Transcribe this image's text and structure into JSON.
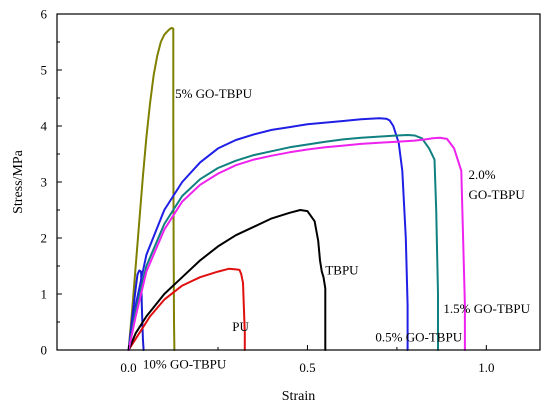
{
  "chart_data": {
    "type": "line",
    "xlabel": "Strain",
    "ylabel": "Stress/MPa",
    "xlim": [
      -0.2,
      1.15
    ],
    "ylim": [
      0,
      6
    ],
    "xticks": [
      0.0,
      0.5,
      1.0
    ],
    "xtick_labels": [
      "0.0",
      "0.5",
      "1.0"
    ],
    "yticks": [
      0,
      1,
      2,
      3,
      4,
      5,
      6
    ],
    "ytick_labels": [
      "0",
      "1",
      "2",
      "3",
      "4",
      "5",
      "6"
    ],
    "grid": false,
    "annotations": [
      {
        "text": "5% GO-TBPU",
        "x": 0.13,
        "y": 4.5
      },
      {
        "text": "2.0%",
        "x": 0.95,
        "y": 3.05
      },
      {
        "text": "GO-TBPU",
        "x": 0.95,
        "y": 2.7
      },
      {
        "text": "TBPU",
        "x": 0.55,
        "y": 1.35
      },
      {
        "text": "1.5% GO-TBPU",
        "x": 0.88,
        "y": 0.66
      },
      {
        "text": "PU",
        "x": 0.29,
        "y": 0.34
      },
      {
        "text": "0.5% GO-TBPU",
        "x": 0.69,
        "y": 0.15
      },
      {
        "text": "10% GO-TBPU",
        "x": 0.04,
        "y": -0.33
      }
    ],
    "series": [
      {
        "color": "#808000",
        "x": [
          0.0,
          0.01,
          0.02,
          0.03,
          0.04,
          0.05,
          0.06,
          0.07,
          0.08,
          0.09,
          0.1,
          0.11,
          0.115,
          0.12,
          0.125,
          0.125,
          0.126,
          0.127,
          0.128
        ],
        "y": [
          0.0,
          0.7,
          1.5,
          2.3,
          3.1,
          3.8,
          4.4,
          4.9,
          5.25,
          5.5,
          5.63,
          5.7,
          5.73,
          5.75,
          5.74,
          4.0,
          2.0,
          0.5,
          0.0
        ]
      },
      {
        "color": "#1c1cd4",
        "x": [
          0.0,
          0.01,
          0.02,
          0.025,
          0.03,
          0.035,
          0.037,
          0.04,
          0.042
        ],
        "y": [
          0.0,
          0.55,
          1.1,
          1.35,
          1.42,
          1.4,
          0.8,
          0.2,
          0.0
        ]
      },
      {
        "color": "#e01010",
        "x": [
          0.0,
          0.03,
          0.06,
          0.1,
          0.15,
          0.2,
          0.25,
          0.28,
          0.3,
          0.31,
          0.315,
          0.32,
          0.322,
          0.325,
          0.325
        ],
        "y": [
          0.0,
          0.3,
          0.6,
          0.9,
          1.15,
          1.3,
          1.4,
          1.45,
          1.44,
          1.43,
          1.35,
          1.2,
          0.8,
          0.3,
          0.0
        ]
      },
      {
        "color": "#000000",
        "x": [
          0.0,
          0.02,
          0.05,
          0.1,
          0.15,
          0.2,
          0.25,
          0.3,
          0.35,
          0.4,
          0.45,
          0.48,
          0.5,
          0.52,
          0.53,
          0.535,
          0.54,
          0.545,
          0.55,
          0.55
        ],
        "y": [
          0.0,
          0.3,
          0.6,
          1.0,
          1.3,
          1.6,
          1.85,
          2.05,
          2.2,
          2.35,
          2.45,
          2.5,
          2.48,
          2.3,
          1.95,
          1.6,
          1.4,
          1.3,
          1.1,
          0.0
        ]
      },
      {
        "color": "#1f1fe6",
        "x": [
          0.0,
          0.02,
          0.05,
          0.1,
          0.15,
          0.2,
          0.25,
          0.3,
          0.35,
          0.4,
          0.45,
          0.5,
          0.55,
          0.6,
          0.65,
          0.7,
          0.72,
          0.73,
          0.74,
          0.755,
          0.765,
          0.775,
          0.78,
          0.78
        ],
        "y": [
          0.0,
          0.8,
          1.7,
          2.5,
          3.0,
          3.35,
          3.6,
          3.75,
          3.85,
          3.93,
          3.98,
          4.03,
          4.06,
          4.09,
          4.12,
          4.14,
          4.13,
          4.1,
          4.0,
          3.7,
          3.2,
          2.0,
          0.8,
          0.0
        ]
      },
      {
        "color": "#118080",
        "x": [
          0.0,
          0.02,
          0.05,
          0.1,
          0.15,
          0.2,
          0.25,
          0.3,
          0.35,
          0.4,
          0.45,
          0.5,
          0.55,
          0.6,
          0.65,
          0.7,
          0.75,
          0.78,
          0.8,
          0.82,
          0.84,
          0.855,
          0.86,
          0.865,
          0.865
        ],
        "y": [
          0.0,
          0.7,
          1.5,
          2.25,
          2.75,
          3.05,
          3.25,
          3.38,
          3.48,
          3.55,
          3.62,
          3.67,
          3.72,
          3.76,
          3.79,
          3.81,
          3.83,
          3.84,
          3.83,
          3.78,
          3.6,
          3.4,
          2.5,
          1.0,
          0.0
        ]
      },
      {
        "color": "#ee22ee",
        "x": [
          0.0,
          0.02,
          0.05,
          0.1,
          0.15,
          0.2,
          0.25,
          0.3,
          0.35,
          0.4,
          0.45,
          0.5,
          0.55,
          0.6,
          0.65,
          0.7,
          0.75,
          0.8,
          0.83,
          0.85,
          0.87,
          0.89,
          0.91,
          0.93,
          0.935,
          0.94,
          0.94
        ],
        "y": [
          0.0,
          0.6,
          1.4,
          2.15,
          2.65,
          2.95,
          3.15,
          3.3,
          3.4,
          3.47,
          3.53,
          3.58,
          3.62,
          3.65,
          3.68,
          3.7,
          3.72,
          3.74,
          3.76,
          3.78,
          3.79,
          3.77,
          3.6,
          3.2,
          2.0,
          0.8,
          0.0
        ]
      }
    ]
  }
}
